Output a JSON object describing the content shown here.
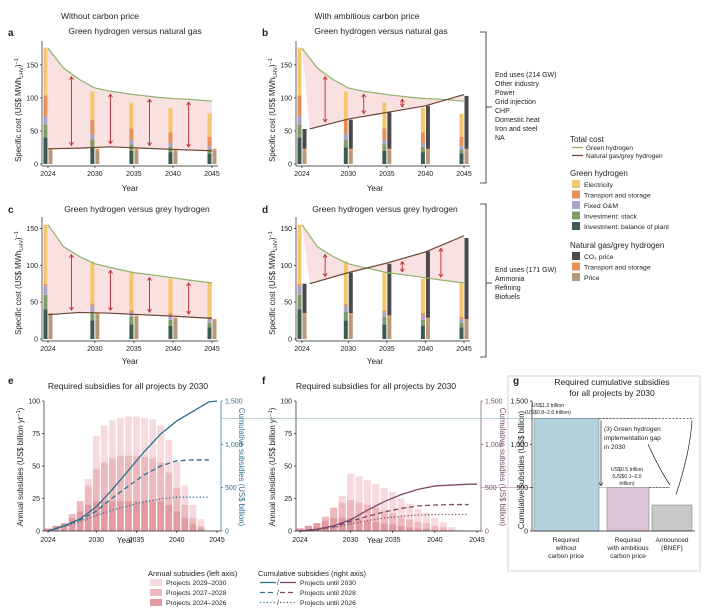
{
  "headers": {
    "left": "Without carbon price",
    "right": "With ambitious carbon price"
  },
  "panels": {
    "a": {
      "letter": "a",
      "title": "Green hydrogen versus natural gas"
    },
    "b": {
      "letter": "b",
      "title": "Green hydrogen versus natural gas"
    },
    "c": {
      "letter": "c",
      "title": "Green hydrogen versus grey hydrogen"
    },
    "d": {
      "letter": "d",
      "title": "Green hydrogen versus grey hydrogen"
    },
    "e": {
      "letter": "e",
      "title": "Required subsidies for all projects by 2030"
    },
    "f": {
      "letter": "f",
      "title": "Required subsidies for all projects by 2030"
    },
    "g": {
      "letter": "g",
      "title_line1": "Required cumulative subsidies",
      "title_line2": "for all projects by 2030"
    }
  },
  "axis_labels": {
    "specific_cost": "Specific cost (US$ MWh",
    "specific_cost_sub": "LHV",
    "specific_cost_end": ")",
    "specific_cost_sup": "−1",
    "year": "Year",
    "annual_subsidies": "Annual subsidies (US$ billion yr",
    "annual_subsidies_sup": "−1",
    "annual_subsidies_end": ")",
    "cumulative_subsidies": "Cumulative subsidies (US$ billion)"
  },
  "end_uses_gas": [
    "End uses (214 GW)",
    "Other industry",
    "Power",
    "Grid injection",
    "CHP",
    "Domestic heat",
    "Iron and steel",
    "NA"
  ],
  "end_uses_grey": [
    "End uses (171 GW)",
    "Ammonia",
    "Refining",
    "Biofuels"
  ],
  "legend": {
    "total_cost": {
      "title": "Total cost",
      "items": [
        {
          "label": "Green hydrogen",
          "color": "#8db36b"
        },
        {
          "label": "Natural gas/grey hydrogen",
          "color": "#6b4530"
        }
      ]
    },
    "green": {
      "title": "Green hydrogen",
      "items": [
        {
          "label": "Electricity",
          "color": "#f3c76b"
        },
        {
          "label": "Transport and storage",
          "color": "#e8905a"
        },
        {
          "label": "Fixed O&M",
          "color": "#a9a2c9"
        },
        {
          "label": "Investment: stack",
          "color": "#7e9c68"
        },
        {
          "label": "Investment: balance of plant",
          "color": "#3e5b52"
        }
      ]
    },
    "grey": {
      "title": "Natural gas/grey hydrogen",
      "items": [
        {
          "label": "CO₂ price",
          "color": "#4a4a4a"
        },
        {
          "label": "Transport and storage",
          "color": "#e8905a"
        },
        {
          "label": "Price",
          "color": "#b69a78"
        }
      ]
    }
  },
  "bottom_legend": {
    "annual_title": "Annual subsidies (left axis)",
    "cumulative_title": "Cumulative subsidies (right axis)",
    "annual_items": [
      {
        "label": "Projects 2029–2030",
        "color": "#f6dadd"
      },
      {
        "label": "Projects 2027–2028",
        "color": "#edb9bd"
      },
      {
        "label": "Projects 2024–2026",
        "color": "#e39aa0"
      }
    ],
    "cumulative_items": [
      "Projects until 2030",
      "Projects until 2028",
      "Projects until 2026"
    ]
  },
  "g_labels": {
    "bar1_l1": "US$1.3 trillion",
    "bar1_l2": "(US$0.8–2.6 trillion)",
    "bar2_l1": "US$0.5 trillion",
    "bar2_l2": "(US$0.1–2.0",
    "bar2_l3": "trillion)",
    "gap_l1": "(3) Green hydrogen",
    "gap_l2": "implementation gap",
    "gap_l3": "in 2030",
    "cat1": [
      "Required",
      "without",
      "carbon price"
    ],
    "cat2": [
      "Required",
      "with ambitious",
      "carbon price"
    ],
    "cat3": [
      "Announced",
      "(BNEF)"
    ]
  },
  "chart_data": [
    {
      "panel": "a",
      "type": "bar",
      "years": [
        2024,
        2030,
        2035,
        2040,
        2045
      ],
      "green_stack": {
        "investment_bop": [
          40,
          25,
          20,
          18,
          16
        ],
        "investment_stack": [
          20,
          12,
          10,
          8,
          6
        ],
        "fixed_om": [
          12,
          8,
          6,
          6,
          5
        ],
        "transport_storage": [
          32,
          22,
          18,
          16,
          14
        ],
        "electricity": [
          72,
          43,
          39,
          37,
          35
        ]
      },
      "grey_stack": {
        "co2_price": [
          0,
          0,
          0,
          0,
          0
        ],
        "transport_storage": [
          3,
          3,
          3,
          3,
          3
        ],
        "price": [
          20,
          20,
          20,
          20,
          20
        ]
      },
      "green_total": {
        "x": [
          2024,
          2026,
          2028,
          2030,
          2032,
          2035,
          2038,
          2040,
          2042,
          2045
        ],
        "y": [
          175,
          145,
          128,
          115,
          110,
          105,
          101,
          99,
          98,
          95
        ]
      },
      "grey_total": {
        "x": [
          2024,
          2028,
          2032,
          2036,
          2040,
          2045
        ],
        "y": [
          23,
          24,
          26,
          24,
          22,
          20
        ]
      },
      "ylim": [
        0,
        180
      ],
      "yticks": [
        0,
        50,
        100,
        150
      ]
    },
    {
      "panel": "b",
      "type": "bar",
      "years": [
        2024,
        2030,
        2035,
        2040,
        2045
      ],
      "green_stack": {
        "investment_bop": [
          40,
          25,
          20,
          18,
          16
        ],
        "investment_stack": [
          20,
          12,
          10,
          8,
          6
        ],
        "fixed_om": [
          12,
          8,
          6,
          6,
          5
        ],
        "transport_storage": [
          32,
          22,
          18,
          16,
          14
        ],
        "electricity": [
          72,
          43,
          39,
          37,
          35
        ]
      },
      "grey_stack": {
        "co2_price": [
          30,
          44,
          55,
          65,
          80
        ],
        "transport_storage": [
          3,
          3,
          3,
          3,
          3
        ],
        "price": [
          20,
          20,
          20,
          20,
          20
        ]
      },
      "green_total": {
        "x": [
          2024,
          2026,
          2028,
          2030,
          2032,
          2035,
          2038,
          2040,
          2042,
          2045
        ],
        "y": [
          175,
          145,
          128,
          115,
          110,
          105,
          101,
          99,
          98,
          95
        ]
      },
      "grey_total": {
        "x": [
          2025,
          2030,
          2035,
          2040,
          2045
        ],
        "y": [
          53,
          68,
          78,
          88,
          105
        ]
      },
      "ylim": [
        0,
        180
      ],
      "yticks": [
        0,
        50,
        100,
        150
      ]
    },
    {
      "panel": "c",
      "type": "bar",
      "years": [
        2024,
        2030,
        2035,
        2040,
        2045
      ],
      "green_stack": {
        "investment_bop": [
          40,
          25,
          20,
          18,
          16
        ],
        "investment_stack": [
          20,
          12,
          10,
          8,
          6
        ],
        "fixed_om": [
          12,
          8,
          6,
          6,
          5
        ],
        "transport_storage": [
          3,
          3,
          3,
          3,
          3
        ],
        "electricity": [
          80,
          57,
          51,
          47,
          46
        ]
      },
      "grey_stack": {
        "co2_price": [
          0,
          0,
          0,
          0,
          0
        ],
        "transport_storage": [
          2,
          2,
          2,
          2,
          2
        ],
        "price": [
          33,
          33,
          30,
          27,
          25
        ]
      },
      "green_total": {
        "x": [
          2024,
          2026,
          2028,
          2030,
          2032,
          2035,
          2038,
          2040,
          2042,
          2045
        ],
        "y": [
          155,
          125,
          112,
          102,
          97,
          90,
          86,
          83,
          80,
          76
        ]
      },
      "grey_total": {
        "x": [
          2024,
          2028,
          2032,
          2036,
          2040,
          2045
        ],
        "y": [
          33,
          36,
          35,
          33,
          31,
          28
        ]
      },
      "ylim": [
        0,
        160
      ],
      "yticks": [
        0,
        50,
        100,
        150
      ]
    },
    {
      "panel": "d",
      "type": "bar",
      "years": [
        2024,
        2030,
        2035,
        2040,
        2045
      ],
      "green_stack": {
        "investment_bop": [
          40,
          25,
          20,
          18,
          16
        ],
        "investment_stack": [
          20,
          12,
          10,
          8,
          6
        ],
        "fixed_om": [
          12,
          8,
          6,
          6,
          5
        ],
        "transport_storage": [
          3,
          3,
          3,
          3,
          3
        ],
        "electricity": [
          80,
          57,
          51,
          47,
          46
        ]
      },
      "grey_stack": {
        "co2_price": [
          40,
          55,
          70,
          90,
          110
        ],
        "transport_storage": [
          2,
          2,
          2,
          2,
          2
        ],
        "price": [
          33,
          33,
          30,
          27,
          25
        ]
      },
      "green_total": {
        "x": [
          2024,
          2026,
          2028,
          2030,
          2032,
          2035,
          2038,
          2040,
          2042,
          2045
        ],
        "y": [
          155,
          125,
          112,
          102,
          97,
          90,
          86,
          83,
          80,
          76
        ]
      },
      "grey_total": {
        "x": [
          2025,
          2030,
          2035,
          2040,
          2045
        ],
        "y": [
          75,
          90,
          103,
          118,
          140
        ]
      },
      "ylim": [
        0,
        160
      ],
      "yticks": [
        0,
        50,
        100,
        150
      ]
    },
    {
      "panel": "e",
      "type": "area",
      "x": [
        2024,
        2025,
        2026,
        2027,
        2028,
        2029,
        2030,
        2031,
        2032,
        2033,
        2034,
        2035,
        2036,
        2037,
        2038,
        2039,
        2040,
        2041,
        2042,
        2043,
        2044,
        2045
      ],
      "annual_2024_2026": [
        2,
        4,
        6,
        10,
        15,
        20,
        23,
        23,
        23,
        23,
        23,
        23,
        23,
        23,
        23,
        20,
        15,
        10,
        5,
        2,
        0,
        0
      ],
      "annual_2027_2028": [
        0,
        0,
        0,
        3,
        8,
        15,
        25,
        30,
        33,
        35,
        35,
        35,
        34,
        33,
        30,
        25,
        18,
        10,
        5,
        2,
        0,
        0
      ],
      "annual_2029_2030": [
        0,
        0,
        0,
        0,
        0,
        5,
        25,
        28,
        29,
        29,
        30,
        30,
        30,
        30,
        28,
        25,
        20,
        15,
        10,
        5,
        0,
        0
      ],
      "cumulative_until_2030": {
        "x": [
          2024,
          2026,
          2028,
          2030,
          2032,
          2034,
          2036,
          2038,
          2040,
          2042,
          2044,
          2045
        ],
        "y": [
          0,
          60,
          140,
          280,
          480,
          700,
          920,
          1120,
          1270,
          1380,
          1490,
          1500
        ]
      },
      "cumulative_until_2028": {
        "x": [
          2024,
          2026,
          2028,
          2030,
          2032,
          2034,
          2036,
          2038,
          2040,
          2042,
          2044
        ],
        "y": [
          0,
          60,
          130,
          230,
          380,
          520,
          650,
          750,
          810,
          820,
          820
        ]
      },
      "cumulative_until_2026": {
        "x": [
          2024,
          2026,
          2028,
          2030,
          2032,
          2034,
          2036,
          2038,
          2040,
          2042,
          2044
        ],
        "y": [
          0,
          50,
          110,
          180,
          240,
          290,
          340,
          370,
          390,
          390,
          390
        ]
      },
      "ylim_left": [
        0,
        100
      ],
      "ylim_right": [
        0,
        1500
      ],
      "yticks_left": [
        0,
        25,
        50,
        75,
        100
      ],
      "yticks_right": [
        0,
        500,
        1000,
        1500
      ],
      "ytick_labels_right": [
        "0",
        "500",
        "1,000",
        "1,500"
      ],
      "xticks": [
        2024,
        2030,
        2035,
        2040,
        2045
      ]
    },
    {
      "panel": "f",
      "type": "area",
      "x": [
        2024,
        2025,
        2026,
        2027,
        2028,
        2029,
        2030,
        2031,
        2032,
        2033,
        2034,
        2035,
        2036,
        2037,
        2038,
        2039,
        2040,
        2041,
        2042,
        2043,
        2044,
        2045
      ],
      "annual_2024_2026": [
        2,
        4,
        6,
        8,
        10,
        10,
        10,
        9,
        8,
        7,
        6,
        5,
        4,
        3,
        2,
        2,
        1,
        1,
        0,
        0,
        0,
        0
      ],
      "annual_2027_2028": [
        0,
        0,
        0,
        3,
        8,
        12,
        14,
        13,
        12,
        11,
        10,
        9,
        7,
        6,
        5,
        4,
        3,
        2,
        1,
        0,
        0,
        0
      ],
      "annual_2029_2030": [
        0,
        0,
        0,
        0,
        0,
        5,
        20,
        20,
        19,
        18,
        17,
        16,
        14,
        12,
        10,
        8,
        6,
        4,
        2,
        1,
        0,
        0
      ],
      "cumulative_until_2030": {
        "x": [
          2024,
          2026,
          2028,
          2030,
          2032,
          2034,
          2036,
          2038,
          2040,
          2042,
          2044,
          2045
        ],
        "y": [
          0,
          20,
          60,
          130,
          240,
          340,
          420,
          480,
          520,
          530,
          540,
          540
        ]
      },
      "cumulative_until_2028": {
        "x": [
          2024,
          2026,
          2028,
          2030,
          2032,
          2034,
          2036,
          2038,
          2040,
          2042,
          2044
        ],
        "y": [
          0,
          20,
          50,
          110,
          170,
          220,
          260,
          290,
          300,
          305,
          305
        ]
      },
      "cumulative_until_2026": {
        "x": [
          2024,
          2026,
          2028,
          2030,
          2032,
          2034,
          2036,
          2038,
          2040,
          2042,
          2044
        ],
        "y": [
          0,
          15,
          40,
          80,
          120,
          150,
          170,
          185,
          190,
          190,
          190
        ]
      },
      "ylim_left": [
        0,
        100
      ],
      "ylim_right": [
        0,
        1500
      ],
      "yticks_left": [
        0,
        25,
        50,
        75,
        100
      ],
      "yticks_right": [
        0,
        500,
        1000,
        1500
      ],
      "ytick_labels_right": [
        "0",
        "500",
        "1,000",
        "1,500"
      ],
      "xticks": [
        2024,
        2030,
        2035,
        2040,
        2045
      ]
    },
    {
      "panel": "g",
      "type": "bar",
      "categories": [
        "Required without carbon price",
        "Required with ambitious carbon price",
        "Announced (BNEF)"
      ],
      "values": [
        1300,
        500,
        300
      ],
      "ylim": [
        0,
        1500
      ],
      "yticks": [
        0,
        500,
        1000,
        1500
      ],
      "ytick_labels": [
        "0",
        "500",
        "1,000",
        "1,500"
      ],
      "colors": [
        "#b4d2dc",
        "#dcc5d7",
        "#c9c9c9"
      ]
    }
  ]
}
